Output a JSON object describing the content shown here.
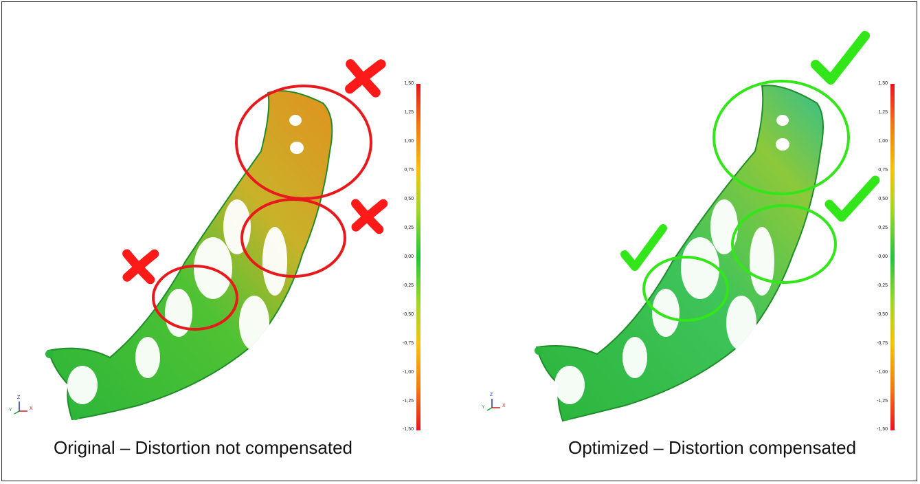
{
  "panels": [
    {
      "caption": "Original – Distortion not compensated",
      "mark_icon": "cross-mark",
      "mark_color": "#ff1a1a",
      "circle_color": "#e8191c"
    },
    {
      "caption": "Optimized – Distortion compensated",
      "mark_icon": "check-mark",
      "mark_color": "#33e61a",
      "circle_color": "#33e61a"
    }
  ],
  "color_scale": {
    "ticks": [
      "1,50",
      "1,25",
      "1,00",
      "0,75",
      "0,50",
      "0,25",
      "0,00",
      "-0,25",
      "-0,50",
      "-0,75",
      "-1,00",
      "-1,25",
      "-1,50"
    ],
    "colors": [
      "#e8141e",
      "#f07a14",
      "#f4c30f",
      "#9fd62a",
      "#22c53a",
      "#22c53a",
      "#9fd62a",
      "#f4c30f",
      "#f07a14",
      "#e8141e"
    ]
  },
  "axes": {
    "z": "Z",
    "y": "Y",
    "x": "X"
  }
}
